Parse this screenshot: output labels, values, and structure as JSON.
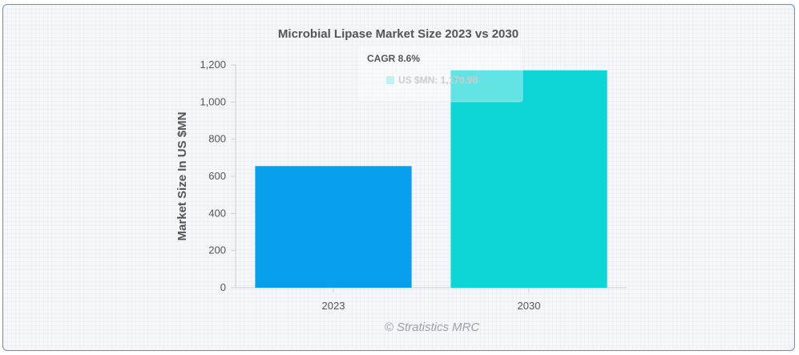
{
  "colors": {
    "bar_2023": "#069fec",
    "bar_2030": "#0fd6d6",
    "axis": "#d0d0d0",
    "text": "#555555"
  },
  "chart_data": {
    "type": "bar",
    "title": "Microbial Lipase Market Size 2023 vs 2030",
    "xlabel": "",
    "ylabel": "Market Size In US $MN",
    "categories": [
      "2023",
      "2030"
    ],
    "values": [
      655,
      1170.98
    ],
    "ylim": [
      0,
      1200
    ],
    "yticks": [
      "0",
      "200",
      "400",
      "600",
      "800",
      "1,000",
      "1,200"
    ],
    "grid": false,
    "tooltip": {
      "header": "CAGR 8.6%",
      "series_text": "US $MN: 1,170.98"
    },
    "watermark": "© Stratistics MRC"
  }
}
